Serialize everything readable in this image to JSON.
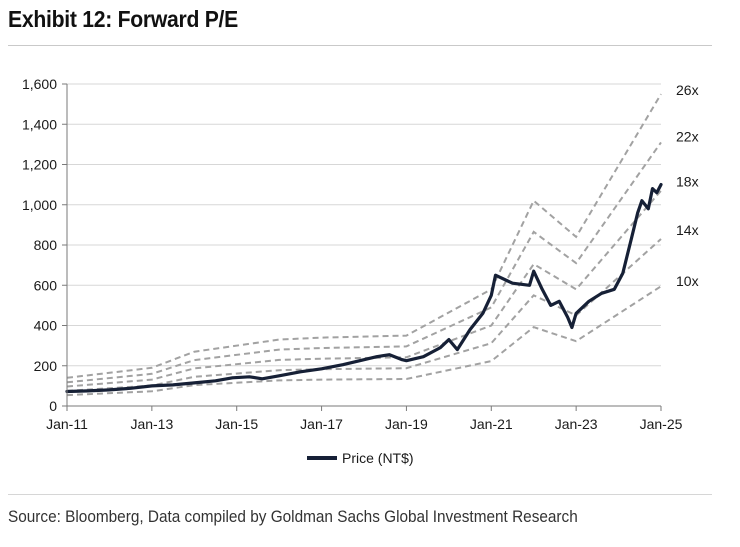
{
  "title": "Exhibit 12: Forward P/E",
  "source": "Source: Bloomberg, Data compiled by Goldman Sachs Global Investment Research",
  "chart_data": {
    "type": "line",
    "title": "Exhibit 12: Forward P/E",
    "xlabel": "",
    "ylabel": "",
    "xlim": [
      2011.0,
      2025.0
    ],
    "ylim": [
      0,
      1600
    ],
    "yticks": [
      0,
      200,
      400,
      600,
      800,
      1000,
      1200,
      1400,
      1600
    ],
    "ytick_labels": [
      "0",
      "200",
      "400",
      "600",
      "800",
      "1,000",
      "1,200",
      "1,400",
      "1,600"
    ],
    "xticks": [
      2011,
      2013,
      2015,
      2017,
      2019,
      2021,
      2023,
      2025
    ],
    "xtick_labels": [
      "Jan-11",
      "Jan-13",
      "Jan-15",
      "Jan-17",
      "Jan-19",
      "Jan-21",
      "Jan-23",
      "Jan-25"
    ],
    "grid": true,
    "legend": {
      "position": "bottom-center",
      "entries": [
        "Price (NT$)"
      ]
    },
    "price_series": {
      "name": "Price (NT$)",
      "color": "#162036",
      "x": [
        2011.0,
        2011.5,
        2012.0,
        2012.5,
        2013.0,
        2013.5,
        2014.0,
        2014.5,
        2014.9,
        2015.3,
        2015.6,
        2016.0,
        2016.5,
        2017.0,
        2017.5,
        2017.9,
        2018.3,
        2018.6,
        2018.9,
        2019.0,
        2019.4,
        2019.8,
        2020.0,
        2020.2,
        2020.5,
        2020.8,
        2021.0,
        2021.1,
        2021.5,
        2021.9,
        2022.0,
        2022.2,
        2022.4,
        2022.6,
        2022.8,
        2022.9,
        2023.0,
        2023.3,
        2023.6,
        2023.9,
        2024.1,
        2024.3,
        2024.45,
        2024.55,
        2024.7,
        2024.8,
        2024.9,
        2025.0
      ],
      "values": [
        72,
        75,
        80,
        88,
        100,
        105,
        115,
        125,
        140,
        145,
        135,
        150,
        170,
        185,
        205,
        225,
        245,
        255,
        230,
        225,
        245,
        290,
        330,
        280,
        380,
        460,
        550,
        650,
        610,
        600,
        670,
        580,
        500,
        520,
        440,
        390,
        460,
        520,
        560,
        580,
        660,
        830,
        960,
        1020,
        980,
        1080,
        1060,
        1100
      ]
    },
    "pe_bands": [
      {
        "name": "26x",
        "x": [
          2011.0,
          2013.0,
          2014.0,
          2016.0,
          2017.0,
          2019.0,
          2021.0,
          2022.0,
          2023.0,
          2025.0
        ],
        "values": [
          140,
          190,
          270,
          330,
          340,
          350,
          580,
          1020,
          840,
          1550
        ]
      },
      {
        "name": "22x",
        "x": [
          2011.0,
          2013.0,
          2014.0,
          2016.0,
          2017.0,
          2019.0,
          2021.0,
          2022.0,
          2023.0,
          2025.0
        ],
        "values": [
          118,
          160,
          228,
          280,
          288,
          296,
          490,
          865,
          710,
          1310
        ]
      },
      {
        "name": "18x",
        "x": [
          2011.0,
          2013.0,
          2014.0,
          2016.0,
          2017.0,
          2019.0,
          2021.0,
          2022.0,
          2023.0,
          2025.0
        ],
        "values": [
          97,
          131,
          187,
          229,
          235,
          242,
          400,
          705,
          580,
          1070
        ]
      },
      {
        "name": "14x",
        "x": [
          2011.0,
          2013.0,
          2014.0,
          2016.0,
          2017.0,
          2019.0,
          2021.0,
          2022.0,
          2023.0,
          2025.0
        ],
        "values": [
          75,
          102,
          145,
          178,
          183,
          188,
          312,
          550,
          450,
          830
        ]
      },
      {
        "name": "10x",
        "x": [
          2011.0,
          2013.0,
          2014.0,
          2016.0,
          2017.0,
          2019.0,
          2021.0,
          2022.0,
          2023.0,
          2025.0
        ],
        "values": [
          54,
          73,
          104,
          127,
          131,
          134,
          223,
          392,
          322,
          595
        ]
      }
    ],
    "band_labels": [
      "26x",
      "22x",
      "18x",
      "14x",
      "10x"
    ],
    "band_label_values": [
      1570,
      1340,
      1115,
      875,
      620
    ],
    "colors": {
      "price": "#162036",
      "bands": "#a2a2a2",
      "grid": "#d7d7d7",
      "axis": "#7a7a7a"
    }
  }
}
